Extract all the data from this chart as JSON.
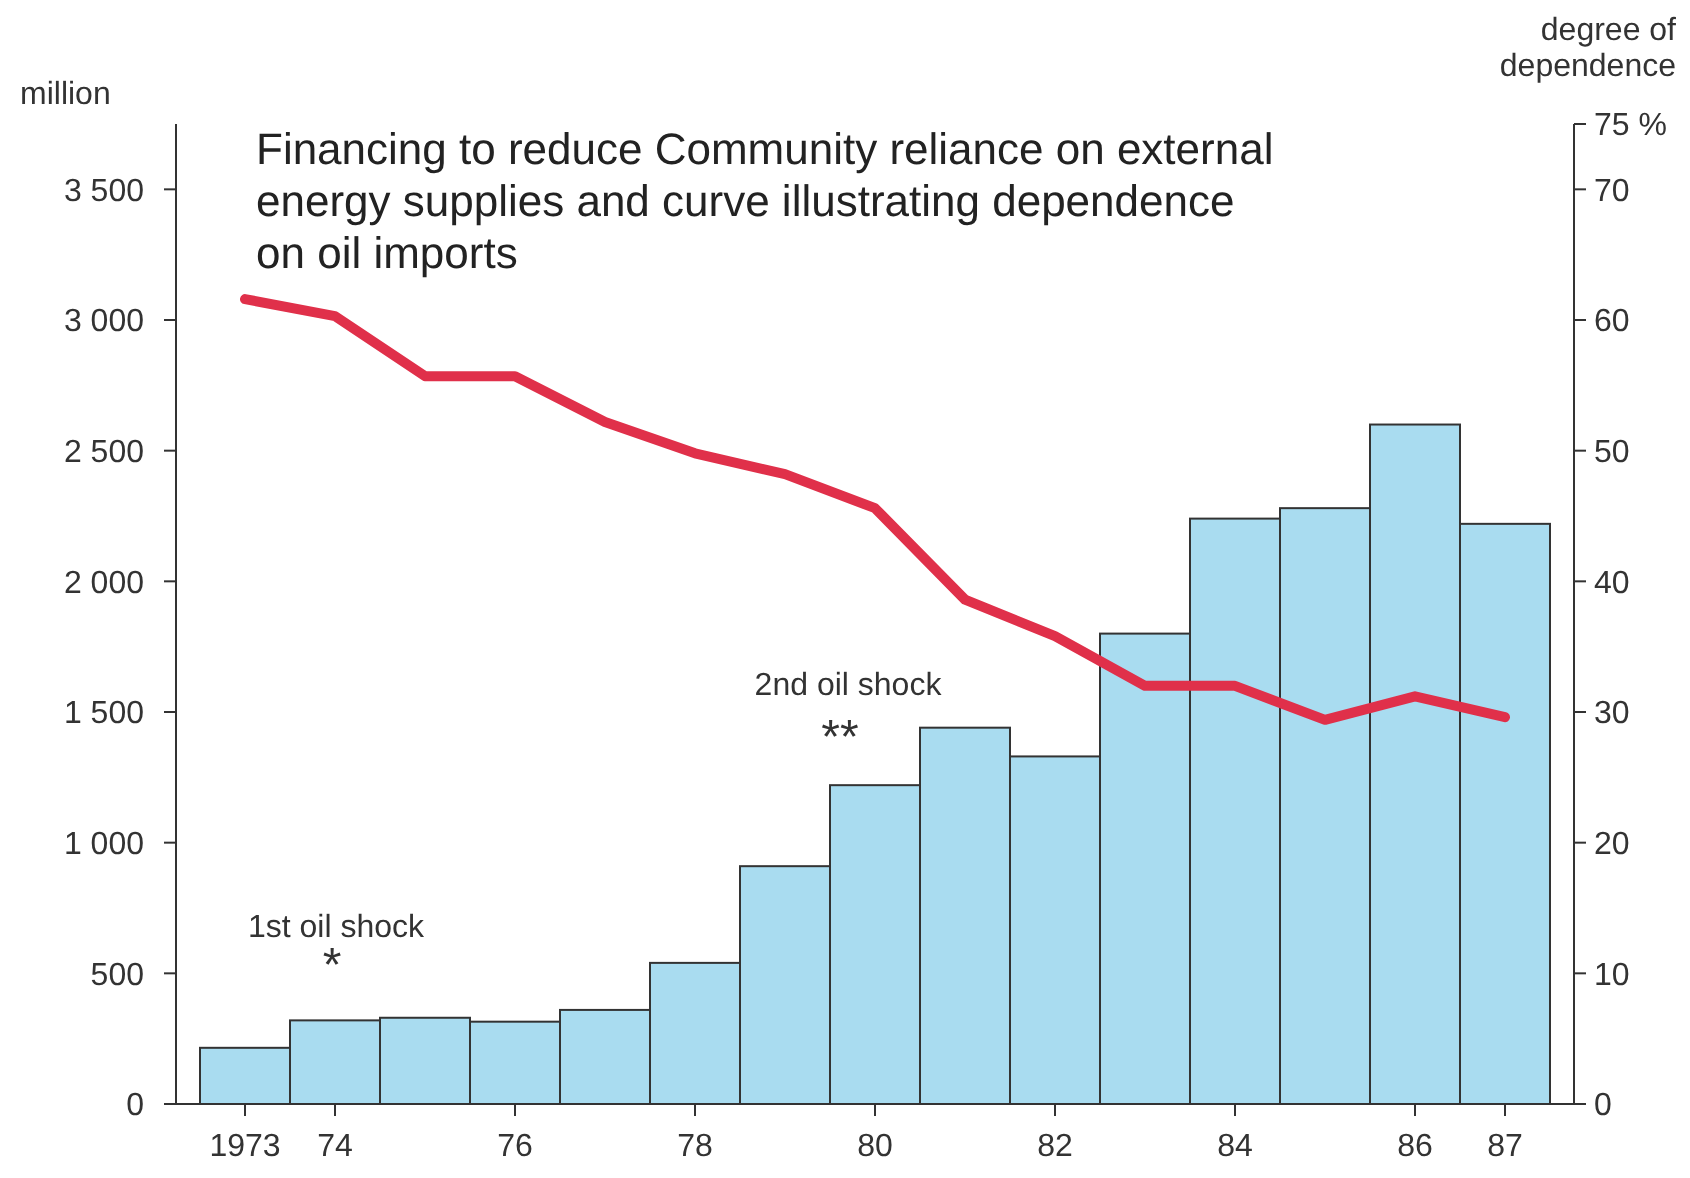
{
  "chart_data": {
    "type": "bar",
    "title": "Financing to reduce Community reliance on external energy supplies and curve illustrating dependence on oil imports",
    "ylabel": "million",
    "y2label": "degree of dependence",
    "categories": [
      "1973",
      "74",
      null,
      "76",
      null,
      "78",
      null,
      "80",
      null,
      "82",
      null,
      "84",
      null,
      "86",
      "87"
    ],
    "series": [
      {
        "color": "#a9dcf0",
        "values": [
          215,
          320,
          330,
          315,
          360,
          540,
          910,
          1220,
          1440,
          1330,
          1800,
          2240,
          2280,
          2600,
          2220
        ]
      },
      {
        "type": "line",
        "axis": "y2",
        "color": "#e0304a",
        "values": [
          61.6,
          60.3,
          55.7,
          55.7,
          52.2,
          49.8,
          48.2,
          45.6,
          38.6,
          35.8,
          32.0,
          32.0,
          29.4,
          31.2,
          29.6
        ]
      }
    ],
    "ylim": [
      0,
      3750
    ],
    "yticks": [
      0,
      500,
      {
        "value": 1000,
        "label": "1 000"
      },
      {
        "value": 1500,
        "label": "1 500"
      },
      {
        "value": 2000,
        "label": "2 000"
      },
      {
        "value": 2500,
        "label": "2 500"
      },
      {
        "value": 3000,
        "label": "3 000"
      },
      {
        "value": 3500,
        "label": "3 500"
      }
    ],
    "y2lim": [
      0,
      75
    ],
    "y2ticks": [
      0,
      10,
      20,
      30,
      40,
      50,
      60,
      70,
      {
        "value": 75,
        "label": "75 %"
      }
    ],
    "annotations": [
      "1st oil shock",
      "*",
      "2nd oil shock",
      "**"
    ],
    "grid": false
  }
}
